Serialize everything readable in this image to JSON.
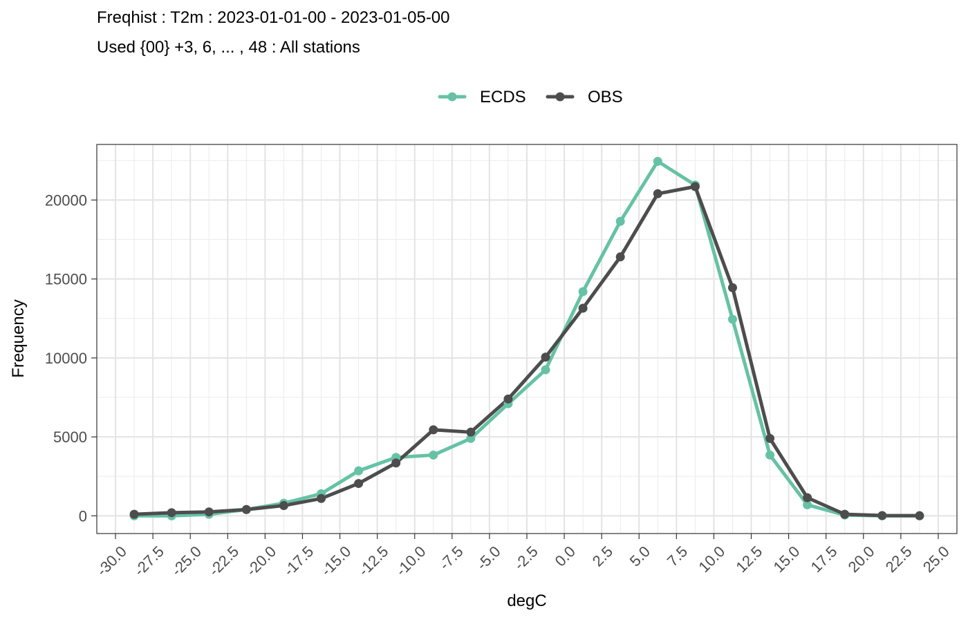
{
  "chart_data": {
    "type": "line",
    "title": "Freqhist : T2m : 2023-01-01-00 - 2023-01-05-00",
    "subtitle": "Used {00} +3, 6, ... , 48 : All stations",
    "xlabel": "degC",
    "ylabel": "Frequency",
    "xlim": [
      -31.25,
      26.25
    ],
    "ylim": [
      -1120,
      23520
    ],
    "x_ticks": [
      -30.0,
      -27.5,
      -25.0,
      -22.5,
      -20.0,
      -17.5,
      -15.0,
      -12.5,
      -10.0,
      -7.5,
      -5.0,
      -2.5,
      0.0,
      2.5,
      5.0,
      7.5,
      10.0,
      12.5,
      15.0,
      17.5,
      20.0,
      22.5,
      25.0
    ],
    "x_tick_labels": [
      "-30.0",
      "-27.5",
      "-25.0",
      "-22.5",
      "-20.0",
      "-17.5",
      "-15.0",
      "-12.5",
      "-10.0",
      "-7.5",
      "-5.0",
      "-2.5",
      "0.0",
      "2.5",
      "5.0",
      "7.5",
      "10.0",
      "12.5",
      "15.0",
      "17.5",
      "20.0",
      "22.5",
      "25.0"
    ],
    "y_ticks": [
      0,
      5000,
      10000,
      15000,
      20000
    ],
    "y_tick_labels": [
      "0",
      "5000",
      "10000",
      "15000",
      "20000"
    ],
    "grid": true,
    "legend_position": "top",
    "x": [
      -28.75,
      -26.25,
      -23.75,
      -21.25,
      -18.75,
      -16.25,
      -13.75,
      -11.25,
      -8.75,
      -6.25,
      -3.75,
      -1.25,
      1.25,
      3.75,
      6.25,
      8.75,
      11.25,
      13.75,
      16.25,
      18.75,
      21.25,
      23.75
    ],
    "series": [
      {
        "name": "ECDS",
        "color": "#66c2a5",
        "values": [
          0,
          0,
          100,
          400,
          800,
          1400,
          2850,
          3700,
          3850,
          4900,
          7100,
          9250,
          14200,
          18650,
          22450,
          20950,
          12450,
          3850,
          700,
          50,
          0,
          0
        ]
      },
      {
        "name": "OBS",
        "color": "#4d4d4d",
        "values": [
          100,
          200,
          250,
          400,
          650,
          1100,
          2050,
          3350,
          5450,
          5300,
          7400,
          10050,
          13150,
          16400,
          20400,
          20850,
          14450,
          4900,
          1150,
          100,
          20,
          10
        ]
      }
    ]
  }
}
